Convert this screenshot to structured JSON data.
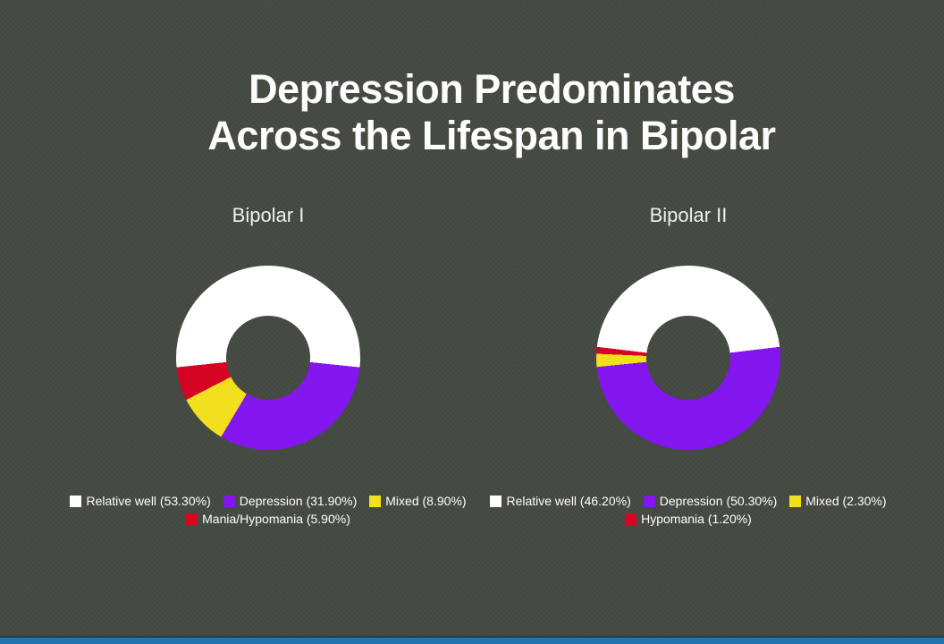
{
  "title": {
    "line1": "Depression Predominates",
    "line2": "Across the Lifespan in Bipolar"
  },
  "colors": {
    "background": "#454a42",
    "title_text": "#fdfdfd",
    "legend_text": "#ffffff",
    "bottom_bar": "#2274b0",
    "bottom_bar_edge": "#1d4156",
    "relative_well": "#ffffff",
    "depression": "#8315ee",
    "mixed": "#f2df1e",
    "mania_hypomania": "#d50423"
  },
  "chart_data": [
    {
      "type": "pie",
      "variant": "donut",
      "title": "Bipolar I",
      "legend_position": "bottom",
      "rotation_rule": "first-slice-centered-at-top",
      "series": [
        {
          "label": "Relative well",
          "value": 53.3,
          "legend_text": "Relative well (53.30%)",
          "color": "#ffffff"
        },
        {
          "label": "Depression",
          "value": 31.9,
          "legend_text": "Depression (31.90%)",
          "color": "#8315ee"
        },
        {
          "label": "Mixed",
          "value": 8.9,
          "legend_text": "Mixed (8.90%)",
          "color": "#f2df1e"
        },
        {
          "label": "Mania/Hypomania",
          "value": 5.9,
          "legend_text": "Mania/Hypomania (5.90%)",
          "color": "#d50423"
        }
      ]
    },
    {
      "type": "pie",
      "variant": "donut",
      "title": "Bipolar II",
      "legend_position": "bottom",
      "rotation_rule": "first-slice-centered-at-top",
      "series": [
        {
          "label": "Relative well",
          "value": 46.2,
          "legend_text": "Relative well (46.20%)",
          "color": "#ffffff"
        },
        {
          "label": "Depression",
          "value": 50.3,
          "legend_text": "Depression (50.30%)",
          "color": "#8315ee"
        },
        {
          "label": "Mixed",
          "value": 2.3,
          "legend_text": "Mixed (2.30%)",
          "color": "#f2df1e"
        },
        {
          "label": "Hypomania",
          "value": 1.2,
          "legend_text": "Hypomania (1.20%)",
          "color": "#d50423"
        }
      ]
    }
  ]
}
